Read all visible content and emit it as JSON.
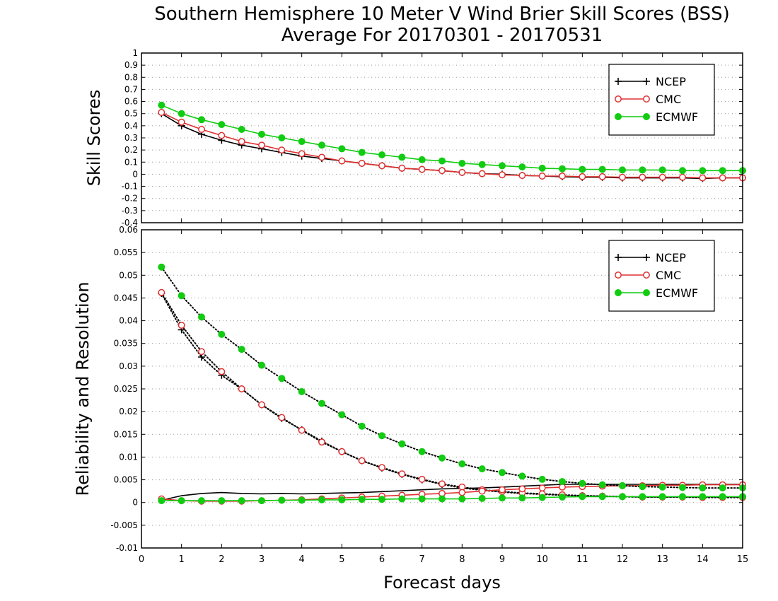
{
  "title_line1": "Southern Hemisphere 10 Meter V Wind Brier Skill Scores (BSS)",
  "title_line2": "Average For 20170301 - 20170531",
  "xlabel": "Forecast days",
  "colors": {
    "NCEP": "#000000",
    "CMC": "#e03030",
    "ECMWF": "#11cc11"
  },
  "chart_data": [
    {
      "type": "line",
      "ylabel": "Skill Scores",
      "xlim": [
        0,
        15
      ],
      "ylim": [
        -0.4,
        1
      ],
      "yticks": [
        -0.4,
        -0.3,
        -0.2,
        -0.1,
        0,
        0.1,
        0.2,
        0.3,
        0.4,
        0.5,
        0.6,
        0.7,
        0.8,
        0.9,
        1
      ],
      "ytick_labels": [
        "-0.4",
        "-0.3",
        "-0.2",
        "-0.1",
        "0",
        "0.1",
        "0.2",
        "0.3",
        "0.4",
        "0.5",
        "0.6",
        "0.7",
        "0.8",
        "0.9",
        "1"
      ],
      "xticks": [
        0,
        1,
        2,
        3,
        4,
        5,
        6,
        7,
        8,
        9,
        10,
        11,
        12,
        13,
        14,
        15
      ],
      "xtick_labels": [
        "0",
        "1",
        "2",
        "3",
        "4",
        "5",
        "6",
        "7",
        "8",
        "9",
        "10",
        "11",
        "12",
        "13",
        "14",
        "15"
      ],
      "grid": true,
      "legend_position": "top-right",
      "x": [
        0.5,
        1,
        1.5,
        2,
        2.5,
        3,
        3.5,
        4,
        4.5,
        5,
        5.5,
        6,
        6.5,
        7,
        7.5,
        8,
        8.5,
        9,
        9.5,
        10,
        10.5,
        11,
        11.5,
        12,
        12.5,
        13,
        13.5,
        14,
        14.5,
        15
      ],
      "series": [
        {
          "name": "NCEP",
          "marker": "plus",
          "style": "solid",
          "values": [
            0.5,
            0.4,
            0.33,
            0.28,
            0.24,
            0.21,
            0.18,
            0.15,
            0.13,
            0.11,
            0.09,
            0.07,
            0.05,
            0.04,
            0.03,
            0.015,
            0.005,
            0,
            -0.01,
            -0.015,
            -0.02,
            -0.025,
            -0.025,
            -0.03,
            -0.03,
            -0.03,
            -0.03,
            -0.035,
            -0.03,
            -0.03
          ]
        },
        {
          "name": "CMC",
          "marker": "circle-open",
          "style": "solid",
          "values": [
            0.51,
            0.43,
            0.37,
            0.32,
            0.27,
            0.24,
            0.2,
            0.17,
            0.14,
            0.11,
            0.09,
            0.07,
            0.05,
            0.04,
            0.03,
            0.015,
            0.005,
            -0.005,
            -0.01,
            -0.015,
            -0.015,
            -0.02,
            -0.02,
            -0.025,
            -0.025,
            -0.025,
            -0.025,
            -0.03,
            -0.03,
            -0.03
          ]
        },
        {
          "name": "ECMWF",
          "marker": "circle-filled",
          "style": "solid",
          "values": [
            0.57,
            0.5,
            0.45,
            0.41,
            0.37,
            0.33,
            0.3,
            0.27,
            0.24,
            0.21,
            0.18,
            0.16,
            0.14,
            0.12,
            0.11,
            0.09,
            0.08,
            0.07,
            0.06,
            0.05,
            0.045,
            0.04,
            0.04,
            0.035,
            0.035,
            0.035,
            0.03,
            0.03,
            0.03,
            0.03
          ]
        }
      ]
    },
    {
      "type": "line",
      "ylabel": "Reliability and Resolution",
      "xlim": [
        0,
        15
      ],
      "ylim": [
        -0.01,
        0.06
      ],
      "yticks": [
        -0.01,
        -0.005,
        0,
        0.005,
        0.01,
        0.015,
        0.02,
        0.025,
        0.03,
        0.035,
        0.04,
        0.045,
        0.05,
        0.055,
        0.06
      ],
      "ytick_labels": [
        "-0.01",
        "-0.005",
        "0",
        "0.005",
        "0.01",
        "0.015",
        "0.02",
        "0.025",
        "0.03",
        "0.035",
        "0.04",
        "0.045",
        "0.05",
        "0.055",
        "0.06"
      ],
      "xticks": [
        0,
        1,
        2,
        3,
        4,
        5,
        6,
        7,
        8,
        9,
        10,
        11,
        12,
        13,
        14,
        15
      ],
      "xtick_labels": [
        "0",
        "1",
        "2",
        "3",
        "4",
        "5",
        "6",
        "7",
        "8",
        "9",
        "10",
        "11",
        "12",
        "13",
        "14",
        "15"
      ],
      "grid": true,
      "legend_position": "top-right",
      "x": [
        0.5,
        1,
        1.5,
        2,
        2.5,
        3,
        3.5,
        4,
        4.5,
        5,
        5.5,
        6,
        6.5,
        7,
        7.5,
        8,
        8.5,
        9,
        9.5,
        10,
        10.5,
        11,
        11.5,
        12,
        12.5,
        13,
        13.5,
        14,
        14.5,
        15
      ],
      "series": [
        {
          "name": "NCEP",
          "marker": "plus",
          "style": "dotted",
          "values": [
            0.046,
            0.038,
            0.032,
            0.028,
            0.025,
            0.0215,
            0.0185,
            0.016,
            0.0135,
            0.0112,
            0.0092,
            0.0076,
            0.0062,
            0.005,
            0.004,
            0.0032,
            0.0027,
            0.0023,
            0.002,
            0.0018,
            0.0016,
            0.0015,
            0.0014,
            0.0013,
            0.0012,
            0.0012,
            0.0012,
            0.0012,
            0.0012,
            0.0012
          ]
        },
        {
          "name": "NCEP",
          "marker": "none",
          "style": "solid",
          "values": [
            0.0005,
            0.0015,
            0.002,
            0.0022,
            0.002,
            0.0019,
            0.002,
            0.0019,
            0.002,
            0.0021,
            0.0022,
            0.0024,
            0.0026,
            0.0028,
            0.003,
            0.0031,
            0.0032,
            0.0034,
            0.0036,
            0.0038,
            0.004,
            0.004,
            0.004,
            0.004,
            0.004,
            0.004,
            0.004,
            0.004,
            0.004,
            0.004
          ]
        },
        {
          "name": "CMC",
          "marker": "circle-open",
          "style": "dotted",
          "values": [
            0.0462,
            0.039,
            0.0332,
            0.0288,
            0.025,
            0.0215,
            0.0187,
            0.0159,
            0.0133,
            0.0112,
            0.0092,
            0.0077,
            0.0063,
            0.0051,
            0.0041,
            0.0034,
            0.0028,
            0.0024,
            0.0021,
            0.0019,
            0.0017,
            0.0015,
            0.0014,
            0.0013,
            0.0012,
            0.0012,
            0.0012,
            0.0011,
            0.0011,
            0.0011
          ]
        },
        {
          "name": "CMC",
          "marker": "circle-open",
          "style": "solid",
          "values": [
            0.0008,
            0.0004,
            0.0003,
            0.0003,
            0.0003,
            0.0004,
            0.0005,
            0.0006,
            0.0008,
            0.001,
            0.0012,
            0.0014,
            0.0016,
            0.0018,
            0.002,
            0.0022,
            0.0025,
            0.0028,
            0.003,
            0.0032,
            0.0034,
            0.0035,
            0.0036,
            0.0037,
            0.0037,
            0.0038,
            0.0038,
            0.0039,
            0.0039,
            0.0039
          ]
        },
        {
          "name": "ECMWF",
          "marker": "circle-filled",
          "style": "dotted",
          "values": [
            0.0518,
            0.0455,
            0.0408,
            0.037,
            0.0337,
            0.0302,
            0.0273,
            0.0244,
            0.0218,
            0.0193,
            0.0168,
            0.0147,
            0.0129,
            0.0112,
            0.0098,
            0.0085,
            0.0074,
            0.0066,
            0.0058,
            0.0051,
            0.0046,
            0.0042,
            0.0039,
            0.0037,
            0.0035,
            0.0034,
            0.0033,
            0.0032,
            0.0032,
            0.0032
          ]
        },
        {
          "name": "ECMWF",
          "marker": "circle-filled",
          "style": "solid",
          "values": [
            0.0004,
            0.0004,
            0.0004,
            0.0004,
            0.0004,
            0.0004,
            0.0005,
            0.0005,
            0.0006,
            0.0006,
            0.0007,
            0.0007,
            0.0008,
            0.0008,
            0.0008,
            0.0008,
            0.0009,
            0.001,
            0.001,
            0.0011,
            0.0012,
            0.0013,
            0.0013,
            0.0013,
            0.0013,
            0.0013,
            0.0013,
            0.0013,
            0.0013,
            0.0013
          ]
        }
      ]
    }
  ]
}
